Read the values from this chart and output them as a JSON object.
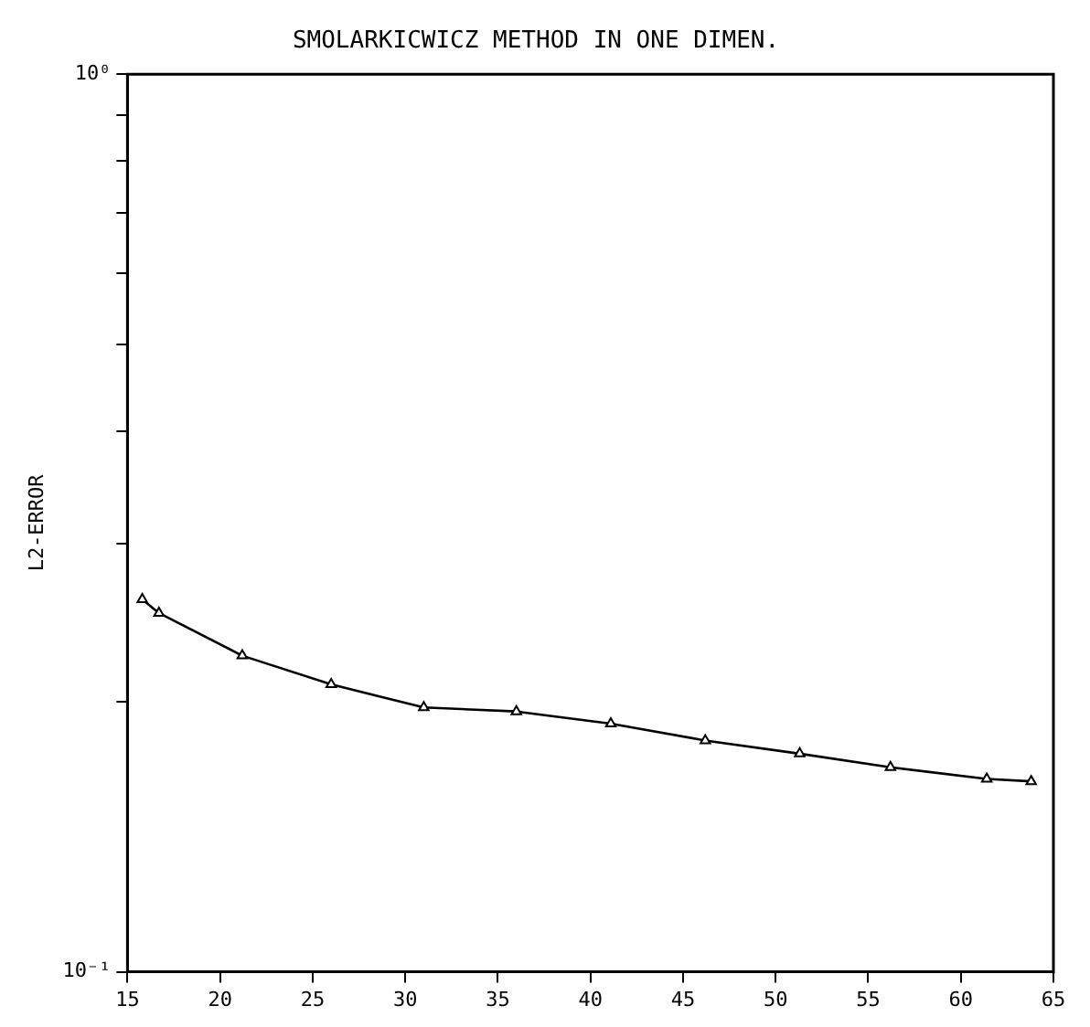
{
  "chart_data": {
    "type": "line",
    "title": "SMOLARKICWICZ METHOD IN ONE DIMEN.",
    "ylabel": "L2-ERROR",
    "x": [
      15.8,
      16.7,
      21.2,
      26,
      31,
      36,
      41.1,
      46.2,
      51.3,
      56.2,
      61.4,
      63.8
    ],
    "series": [
      {
        "color": "#000000",
        "values": [
          0.26,
          0.251,
          0.225,
          0.209,
          0.197,
          0.195,
          0.189,
          0.181,
          0.175,
          0.169,
          0.164,
          0.163
        ]
      }
    ],
    "log": "y",
    "xlim": [
      15,
      65
    ],
    "xticks": [
      15,
      20,
      25,
      30,
      35,
      40,
      45,
      50,
      55,
      60,
      65
    ],
    "ylim": [
      0.1,
      1
    ],
    "yticks": [
      {
        "value": 0.1,
        "label": "10⁻¹"
      },
      {
        "value": 0.2,
        "label": null
      },
      {
        "value": 0.3,
        "label": null
      },
      {
        "value": 0.4,
        "label": null
      },
      {
        "value": 0.5,
        "label": null
      },
      {
        "value": 0.6,
        "label": null
      },
      {
        "value": 0.7,
        "label": null
      },
      {
        "value": 0.8,
        "label": null
      },
      {
        "value": 0.9,
        "label": null
      },
      {
        "value": 1,
        "label": "10⁰"
      }
    ],
    "grid": false,
    "legend": false,
    "marker": "triangle",
    "line_style": "solid"
  }
}
